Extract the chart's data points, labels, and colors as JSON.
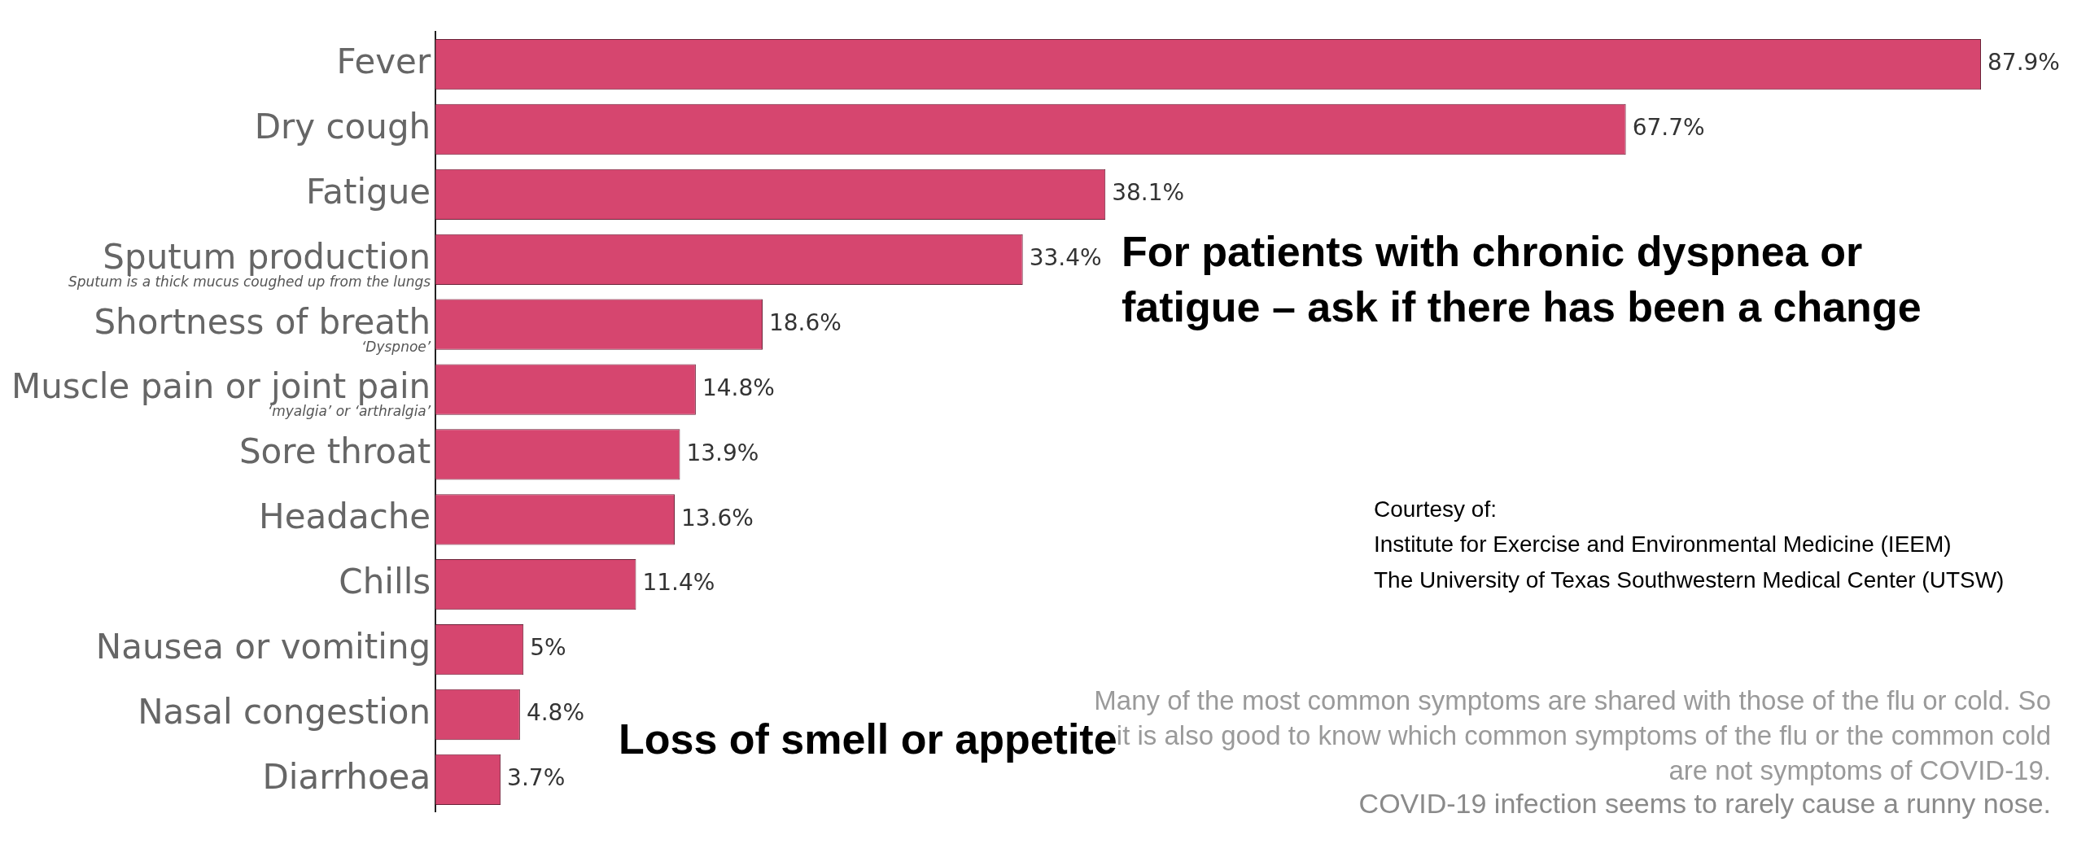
{
  "chart_data": {
    "type": "bar",
    "orientation": "horizontal",
    "data_labels": true,
    "grid": false,
    "legend": false,
    "categories": [
      "Fever",
      "Dry cough",
      "Fatigue",
      "Sputum production",
      "Shortness of breath",
      "Muscle pain or joint pain",
      "Sore throat",
      "Headache",
      "Chills",
      "Nausea or vomiting",
      "Nasal congestion",
      "Diarrhoea"
    ],
    "values": [
      87.9,
      67.7,
      38.1,
      33.4,
      18.6,
      14.8,
      13.9,
      13.6,
      11.4,
      5,
      4.8,
      3.7
    ],
    "value_labels": [
      "87.9%",
      "67.7%",
      "38.1%",
      "33.4%",
      "18.6%",
      "14.8%",
      "13.9%",
      "13.6%",
      "11.4%",
      "5%",
      "4.8%",
      "3.7%"
    ],
    "color": "#d6466f",
    "annotations": [
      "Sputum is a thick mucus coughed up from the lungs",
      "‘Dyspnoe’",
      "‘myalgia’ or ‘arthralgia’",
      "For patients with chronic dyspnea or fatigue – ask if there has been a change",
      "Loss of smell or appetite",
      "Courtesy of:\nInstitute for Exercise and Environmental Medicine (IEEM)\nThe University of Texas Southwestern Medical Center (UTSW)",
      "Many of the most common symptoms are shared with those of the flu or cold. So it is also good to know which common symptoms of the flu or the common cold are not symptoms of COVID-19.",
      "COVID-19 infection seems to rarely cause a runny nose."
    ]
  }
}
